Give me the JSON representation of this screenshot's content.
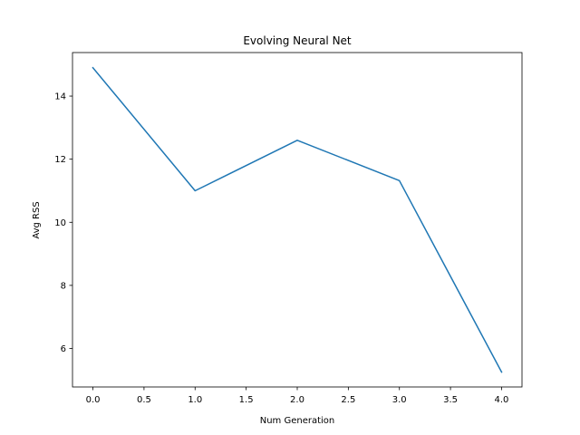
{
  "chart_data": {
    "type": "line",
    "title": "Evolving Neural Net",
    "xlabel": "Num Generation",
    "ylabel": "Avg RSS",
    "xlim": [
      -0.2,
      4.2
    ],
    "ylim": [
      4.78,
      15.38
    ],
    "xticks": [
      0.0,
      0.5,
      1.0,
      1.5,
      2.0,
      2.5,
      3.0,
      3.5,
      4.0
    ],
    "xtick_labels": [
      "0.0",
      "0.5",
      "1.0",
      "1.5",
      "2.0",
      "2.5",
      "3.0",
      "3.5",
      "4.0"
    ],
    "yticks": [
      6,
      8,
      10,
      12,
      14
    ],
    "ytick_labels": [
      "6",
      "8",
      "10",
      "12",
      "14"
    ],
    "grid": false,
    "legend": "none",
    "line_color": "#1f77b4",
    "series": [
      {
        "x": [
          0,
          1,
          2,
          3,
          4
        ],
        "values": [
          14.9,
          11.0,
          12.6,
          11.32,
          5.25
        ]
      }
    ]
  }
}
